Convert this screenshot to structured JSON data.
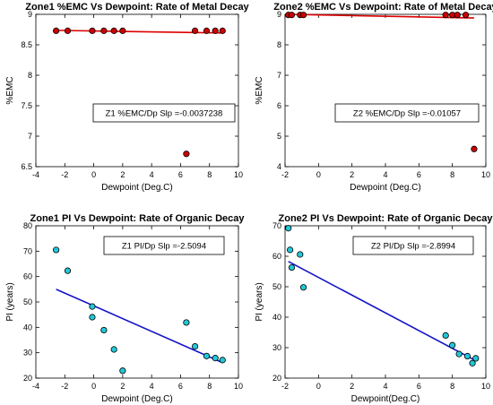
{
  "chart_data": [
    {
      "type": "scatter",
      "title": "Zone1 %EMC Vs Dewpoint: Rate of Metal Decay",
      "xlabel": "Dewpoint (Deg.C)",
      "ylabel": "%EMC",
      "xlim": [
        -4,
        10
      ],
      "ylim": [
        6.5,
        9
      ],
      "xticks": [
        "-4",
        "-2",
        "0",
        "2",
        "4",
        "6",
        "8",
        "10"
      ],
      "yticks": [
        "6.5",
        "7",
        "7.5",
        "8",
        "8.5",
        "9"
      ],
      "annotation": "Z1 %EMC/Dp Slp =-0.0037238",
      "marker_color": "#cc0000",
      "line_color": "#dd0000",
      "points": {
        "x": [
          -2.6,
          -1.8,
          -0.1,
          0.7,
          1.4,
          2.0,
          6.4,
          7.0,
          7.8,
          8.4,
          8.9
        ],
        "y": [
          8.73,
          8.73,
          8.73,
          8.73,
          8.73,
          8.73,
          6.71,
          8.73,
          8.73,
          8.73,
          8.73
        ]
      },
      "fit_line": {
        "x": [
          -2.6,
          8.9
        ],
        "y": [
          8.737,
          8.694
        ]
      }
    },
    {
      "type": "scatter",
      "title": "Zone2 %EMC Vs Dewpoint: Rate of Metal Decay",
      "xlabel": "Dewpoint (Deg.C)",
      "ylabel": "%EMC",
      "xlim": [
        -2,
        10
      ],
      "ylim": [
        4,
        9
      ],
      "xticks": [
        "-2",
        "0",
        "2",
        "4",
        "6",
        "8",
        "10"
      ],
      "yticks": [
        "4",
        "5",
        "6",
        "7",
        "8",
        "9"
      ],
      "annotation": "Z2 %EMC/Dp Slp =-0.01057",
      "marker_color": "#cc0000",
      "line_color": "#dd0000",
      "points": {
        "x": [
          -1.8,
          -1.6,
          -1.1,
          -0.9,
          7.6,
          8.0,
          8.3,
          8.8,
          9.3
        ],
        "y": [
          8.98,
          8.98,
          8.98,
          8.98,
          8.98,
          8.98,
          8.98,
          8.98,
          4.58
        ]
      },
      "fit_line": {
        "x": [
          -1.8,
          9.3
        ],
        "y": [
          9.0,
          8.88
        ]
      }
    },
    {
      "type": "scatter",
      "title": "Zone1 PI Vs Dewpoint: Rate of Organic Decay",
      "xlabel": "Dewpoint (Deg.C)",
      "ylabel": "PI (years)",
      "xlim": [
        -4,
        10
      ],
      "ylim": [
        20,
        80
      ],
      "xticks": [
        "-4",
        "-2",
        "0",
        "2",
        "4",
        "6",
        "8",
        "10"
      ],
      "yticks": [
        "20",
        "30",
        "40",
        "50",
        "60",
        "70",
        "80"
      ],
      "annotation": "Z1 PI/Dp Slp =-2.5094",
      "marker_color": "#22c8d8",
      "line_color": "#1414c8",
      "points": {
        "x": [
          -2.6,
          -1.8,
          -0.1,
          -0.1,
          0.7,
          1.4,
          2.0,
          6.4,
          7.0,
          7.8,
          8.4,
          8.9
        ],
        "y": [
          70.5,
          62.3,
          48.2,
          44.0,
          38.9,
          31.3,
          22.9,
          41.9,
          32.5,
          28.7,
          27.9,
          27.1
        ]
      },
      "fit_line": {
        "x": [
          -2.6,
          8.9
        ],
        "y": [
          55.0,
          26.1
        ]
      }
    },
    {
      "type": "scatter",
      "title": "Zone2 PI Vs Dewpoint: Rate of Organic Decay",
      "xlabel": "Dewpoint(Deg.C)",
      "ylabel": "PI (years)",
      "xlim": [
        -2,
        10
      ],
      "ylim": [
        20,
        70
      ],
      "xticks": [
        "-2",
        "0",
        "2",
        "4",
        "6",
        "8",
        "10"
      ],
      "yticks": [
        "20",
        "30",
        "40",
        "50",
        "60",
        "70"
      ],
      "annotation": "Z2 PI/Dp Slp =-2.8994",
      "marker_color": "#22c8d8",
      "line_color": "#1414c8",
      "points": {
        "x": [
          -1.8,
          -1.7,
          -1.6,
          -1.1,
          -0.9,
          7.6,
          8.0,
          8.4,
          8.9,
          9.2,
          9.4
        ],
        "y": [
          69.2,
          62.1,
          56.3,
          60.6,
          49.8,
          34.0,
          30.8,
          27.9,
          27.2,
          24.9,
          26.5
        ]
      },
      "fit_line": {
        "x": [
          -1.8,
          9.3
        ],
        "y": [
          58.3,
          26.0
        ]
      }
    }
  ]
}
